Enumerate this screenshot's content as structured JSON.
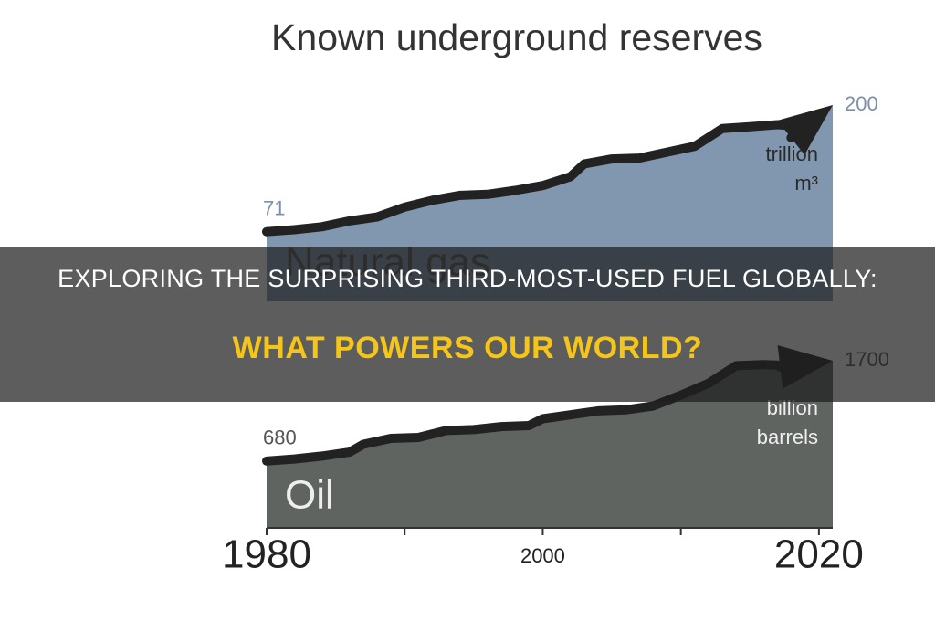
{
  "chart_data": [
    {
      "type": "area",
      "title": "Known underground reserves",
      "x": [
        1980,
        1982,
        1984,
        1986,
        1988,
        1990,
        1992,
        1994,
        1996,
        1998,
        2000,
        2002,
        2003,
        2005,
        2007,
        2009,
        2011,
        2013,
        2015,
        2017,
        2019,
        2021
      ],
      "series": [
        {
          "name": "Natural gas",
          "color": "#8197b0",
          "values": [
            71,
            73,
            76,
            82,
            86,
            96,
            103,
            108,
            109,
            113,
            118,
            127,
            140,
            145,
            146,
            152,
            158,
            176,
            178,
            180,
            178,
            200
          ]
        }
      ],
      "line_color": "#222222",
      "label_color": "#7b8fa7",
      "unit_lines": [
        "trillion",
        "m³"
      ],
      "xlim": [
        1980,
        2021
      ],
      "ylim": [
        0,
        200
      ]
    },
    {
      "type": "area",
      "x": [
        1980,
        1982,
        1984,
        1986,
        1987,
        1989,
        1991,
        1993,
        1995,
        1997,
        1999,
        2000,
        2002,
        2004,
        2006,
        2008,
        2010,
        2012,
        2014,
        2016,
        2018,
        2021
      ],
      "series": [
        {
          "name": "Oil",
          "color": "#5f6461",
          "values": [
            680,
            700,
            730,
            770,
            850,
            910,
            920,
            990,
            1000,
            1030,
            1040,
            1110,
            1150,
            1190,
            1200,
            1240,
            1350,
            1470,
            1650,
            1660,
            1650,
            1700
          ]
        }
      ],
      "line_color": "#222222",
      "label_color": "#555555",
      "unit_lines": [
        "billion",
        "barrels"
      ],
      "xlim": [
        1980,
        2021
      ],
      "ylim": [
        0,
        1700
      ],
      "xticks": [
        1980,
        2000,
        2020
      ],
      "xminorticks": [
        1990,
        2010
      ]
    }
  ],
  "banner": {
    "lines": [
      "EXPLORING THE SURPRISING THIRD-MOST-USED FUEL GLOBALLY:",
      "WHAT POWERS OUR WORLD?"
    ]
  }
}
